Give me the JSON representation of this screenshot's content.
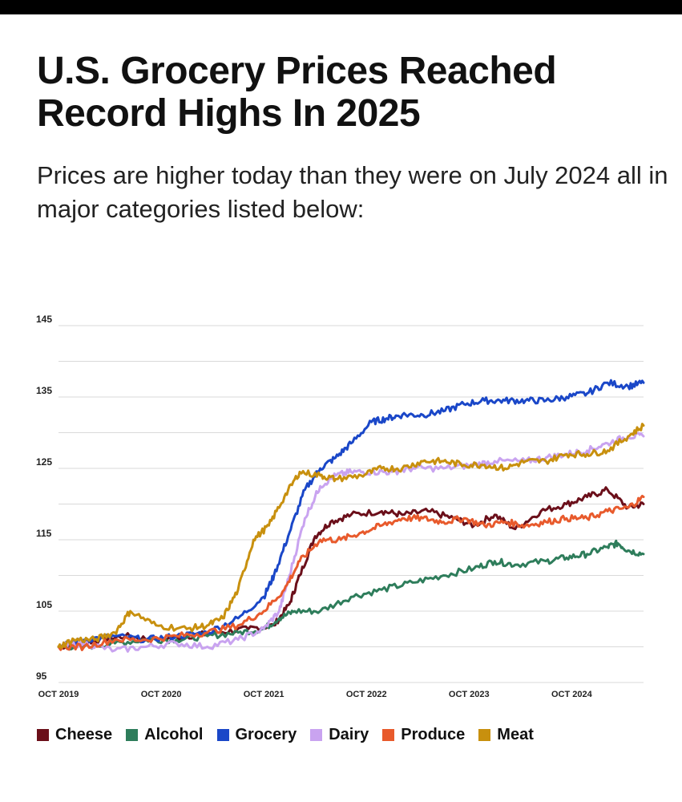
{
  "title": "U.S. Grocery Prices Reached Record Highs In 2025",
  "subtitle": "Prices are higher today than they were on July 2024 all in major categories listed below:",
  "chart_data": {
    "type": "line",
    "title": "U.S. Grocery Prices Reached Record Highs In 2025",
    "xlabel": "",
    "ylabel": "",
    "ylim": [
      95,
      145
    ],
    "xlim": [
      2019.75,
      2025.45
    ],
    "yticks": [
      95,
      105,
      115,
      125,
      135,
      145
    ],
    "ytick_labels": [
      "95",
      "105",
      "115",
      "125",
      "135",
      "145"
    ],
    "xticks": [
      2019.75,
      2020.75,
      2021.75,
      2022.75,
      2023.75,
      2024.75
    ],
    "xtick_labels": [
      "OCT 2019",
      "OCT 2020",
      "OCT 2021",
      "OCT 2022",
      "OCT 2023",
      "OCT 2024"
    ],
    "grid": true,
    "legend_position": "bottom",
    "series": [
      {
        "name": "Cheese",
        "color": "#6b0f1a",
        "x": [
          2019.75,
          2019.95,
          2020.15,
          2020.4,
          2020.7,
          2021.0,
          2021.3,
          2021.6,
          2021.85,
          2022.0,
          2022.1,
          2022.25,
          2022.4,
          2022.6,
          2022.9,
          2023.1,
          2023.35,
          2023.6,
          2023.8,
          2024.0,
          2024.2,
          2024.45,
          2024.7,
          2024.9,
          2025.1,
          2025.3,
          2025.45
        ],
        "y": [
          100,
          100.5,
          101,
          101.5,
          101,
          101.5,
          102,
          102.5,
          103,
          106,
          110,
          115.5,
          117.5,
          118.5,
          119,
          118.5,
          119,
          118,
          117,
          118.5,
          116.5,
          119,
          120,
          121,
          122,
          119.5,
          120
        ]
      },
      {
        "name": "Alcohol",
        "color": "#2e7d5b",
        "x": [
          2019.75,
          2020.0,
          2020.3,
          2020.6,
          2020.9,
          2021.2,
          2021.5,
          2021.75,
          2021.9,
          2022.05,
          2022.3,
          2022.6,
          2022.9,
          2023.2,
          2023.5,
          2023.8,
          2024.0,
          2024.2,
          2024.5,
          2024.7,
          2024.9,
          2025.1,
          2025.2,
          2025.3,
          2025.45
        ],
        "y": [
          100,
          100,
          100.5,
          101,
          101,
          101.5,
          102,
          102.5,
          104,
          105,
          105,
          107,
          108,
          109,
          110,
          111,
          112,
          111.5,
          112,
          112.5,
          113,
          114,
          114.5,
          113.5,
          113
        ]
      },
      {
        "name": "Grocery",
        "color": "#1a47c8",
        "x": [
          2019.75,
          2020.0,
          2020.3,
          2020.6,
          2020.9,
          2021.2,
          2021.5,
          2021.75,
          2021.85,
          2022.0,
          2022.15,
          2022.3,
          2022.45,
          2022.6,
          2022.8,
          2022.95,
          2023.1,
          2023.3,
          2023.5,
          2023.7,
          2023.9,
          2024.1,
          2024.3,
          2024.5,
          2024.7,
          2024.9,
          2025.1,
          2025.3,
          2025.45
        ],
        "y": [
          100,
          101,
          101.5,
          101,
          101.5,
          102,
          104,
          107,
          110,
          116,
          122,
          125,
          126.5,
          128.5,
          131.5,
          132,
          132.5,
          132.5,
          133,
          134,
          134.5,
          134.5,
          134.5,
          134.5,
          135,
          135.5,
          137,
          136.5,
          137
        ]
      },
      {
        "name": "Dairy",
        "color": "#c9a3f0",
        "x": [
          2019.75,
          2020.0,
          2020.3,
          2020.6,
          2020.9,
          2021.2,
          2021.5,
          2021.75,
          2021.9,
          2022.0,
          2022.15,
          2022.3,
          2022.45,
          2022.6,
          2022.8,
          2023.0,
          2023.2,
          2023.5,
          2023.8,
          2024.0,
          2024.3,
          2024.5,
          2024.7,
          2024.9,
          2025.1,
          2025.3,
          2025.45
        ],
        "y": [
          100,
          100.5,
          99.5,
          100,
          100.5,
          100,
          101,
          102.5,
          105,
          110,
          118,
          122.5,
          124,
          124.5,
          124.5,
          124.5,
          125,
          125,
          125.5,
          126,
          126,
          126.5,
          127,
          127.5,
          128.5,
          129.5,
          129.5
        ]
      },
      {
        "name": "Produce",
        "color": "#e85a2c",
        "x": [
          2019.75,
          2020.0,
          2020.3,
          2020.6,
          2020.9,
          2021.2,
          2021.5,
          2021.75,
          2021.95,
          2022.1,
          2022.3,
          2022.5,
          2022.7,
          2022.9,
          2023.1,
          2023.3,
          2023.5,
          2023.7,
          2023.9,
          2024.1,
          2024.3,
          2024.5,
          2024.7,
          2024.9,
          2025.1,
          2025.3,
          2025.45
        ],
        "y": [
          100,
          100,
          101,
          101,
          101.5,
          102,
          103,
          105,
          108,
          112,
          115,
          115,
          116,
          117,
          118,
          118,
          117.5,
          118,
          117,
          117.5,
          117,
          117.5,
          118,
          118,
          119,
          119.5,
          121
        ]
      },
      {
        "name": "Meat",
        "color": "#c8900e",
        "x": [
          2019.75,
          2019.9,
          2020.1,
          2020.3,
          2020.45,
          2020.7,
          2021.0,
          2021.2,
          2021.35,
          2021.5,
          2021.65,
          2021.8,
          2021.95,
          2022.1,
          2022.3,
          2022.45,
          2022.7,
          2022.9,
          2023.1,
          2023.3,
          2023.5,
          2023.7,
          2023.9,
          2024.1,
          2024.3,
          2024.5,
          2024.7,
          2024.9,
          2025.1,
          2025.3,
          2025.45
        ],
        "y": [
          100,
          101,
          101,
          102,
          105,
          103,
          102.5,
          103,
          104,
          108,
          115,
          117,
          121,
          124.5,
          124,
          123.5,
          124,
          125,
          125,
          126,
          126,
          125.5,
          125.5,
          125,
          126,
          126,
          127,
          127,
          127.5,
          129.5,
          131
        ]
      }
    ]
  },
  "legend": [
    {
      "label": "Cheese",
      "color": "#6b0f1a"
    },
    {
      "label": "Alcohol",
      "color": "#2e7d5b"
    },
    {
      "label": "Grocery",
      "color": "#1a47c8"
    },
    {
      "label": "Dairy",
      "color": "#c9a3f0"
    },
    {
      "label": "Produce",
      "color": "#e85a2c"
    },
    {
      "label": "Meat",
      "color": "#c8900e"
    }
  ]
}
